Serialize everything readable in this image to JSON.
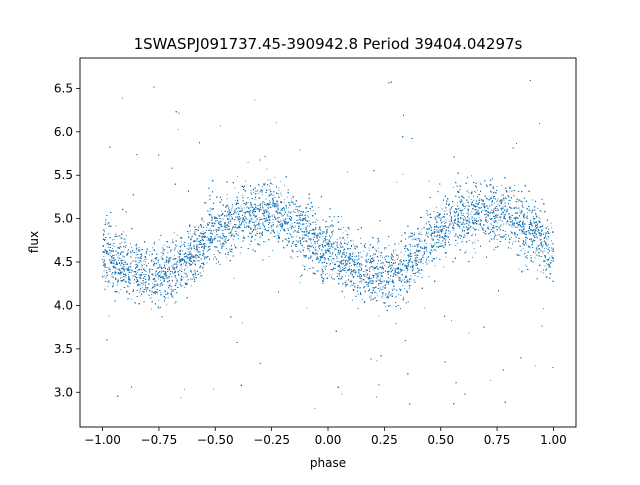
{
  "chart_data": {
    "type": "scatter",
    "title": "1SWASPJ091737.45-390942.8 Period 39404.04297s",
    "xlabel": "phase",
    "ylabel": "flux",
    "xlim": [
      -1.1,
      1.1
    ],
    "ylim": [
      2.6,
      6.85
    ],
    "xticks": [
      -1.0,
      -0.75,
      -0.5,
      -0.25,
      0.0,
      0.25,
      0.5,
      0.75,
      1.0
    ],
    "xtick_labels": [
      "−1.00",
      "−0.75",
      "−0.50",
      "−0.25",
      "0.00",
      "0.25",
      "0.50",
      "0.75",
      "1.00"
    ],
    "yticks": [
      3.0,
      3.5,
      4.0,
      4.5,
      5.0,
      5.5,
      6.0,
      6.5
    ],
    "ytick_labels": [
      "3.0",
      "3.5",
      "4.0",
      "4.5",
      "5.0",
      "5.5",
      "6.0",
      "6.5"
    ],
    "grid": false,
    "series": [
      {
        "color": "#1f77b4",
        "x_range": [
          -1.0,
          1.0
        ],
        "phase_folded_curve": {
          "x": [
            -1.0,
            -0.9,
            -0.8,
            -0.75,
            -0.7,
            -0.6,
            -0.5,
            -0.4,
            -0.3,
            -0.25,
            -0.2,
            -0.1,
            0.0,
            0.1,
            0.2,
            0.25,
            0.3,
            0.4,
            0.5,
            0.6,
            0.7,
            0.75,
            0.8,
            0.9,
            1.0
          ],
          "y": [
            4.6,
            4.45,
            4.35,
            4.35,
            4.4,
            4.6,
            4.85,
            5.0,
            5.08,
            5.07,
            5.0,
            4.85,
            4.6,
            4.45,
            4.35,
            4.35,
            4.4,
            4.6,
            4.85,
            5.0,
            5.08,
            5.07,
            5.0,
            4.85,
            4.6
          ]
        },
        "scatter_sigma": 0.18,
        "outlier_range": [
          2.8,
          6.6
        ],
        "point_count": 24000
      }
    ]
  }
}
